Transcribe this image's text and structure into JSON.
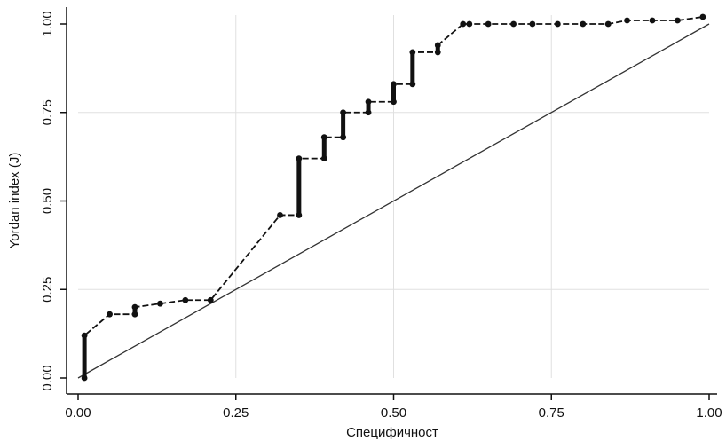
{
  "chart_data": {
    "type": "line",
    "title": "",
    "xlabel": "Специфичност",
    "ylabel": "Yordan index (J)",
    "xlim": [
      0,
      1
    ],
    "ylim": [
      0,
      1
    ],
    "x_ticks": [
      "0.00",
      "0.25",
      "0.50",
      "0.75",
      "1.00"
    ],
    "y_ticks": [
      "0.00",
      "0.25",
      "0.50",
      "0.75",
      "1.00"
    ],
    "grid": true,
    "legend": "none",
    "colors": {
      "curve": "#111111",
      "reference": "#333333",
      "grid": "#e0e0e0"
    },
    "series": [
      {
        "x": [
          0.01,
          0.01,
          0.05,
          0.09,
          0.09,
          0.13,
          0.17,
          0.21,
          0.32,
          0.35,
          0.35,
          0.39,
          0.39,
          0.42,
          0.42,
          0.46,
          0.46,
          0.5,
          0.5,
          0.53,
          0.53,
          0.57,
          0.57,
          0.61,
          0.62,
          0.65,
          0.69,
          0.72,
          0.76,
          0.8,
          0.84,
          0.87,
          0.91,
          0.95,
          0.99
        ],
        "y": [
          0.0,
          0.12,
          0.18,
          0.18,
          0.2,
          0.21,
          0.22,
          0.22,
          0.46,
          0.46,
          0.62,
          0.62,
          0.68,
          0.68,
          0.75,
          0.75,
          0.78,
          0.78,
          0.83,
          0.83,
          0.92,
          0.92,
          0.94,
          1.0,
          1.0,
          1.0,
          1.0,
          1.0,
          1.0,
          1.0,
          1.0,
          1.01,
          1.01,
          1.01,
          1.02
        ]
      },
      {
        "x": [
          0.0,
          1.0
        ],
        "y": [
          0.0,
          1.0
        ]
      }
    ]
  }
}
